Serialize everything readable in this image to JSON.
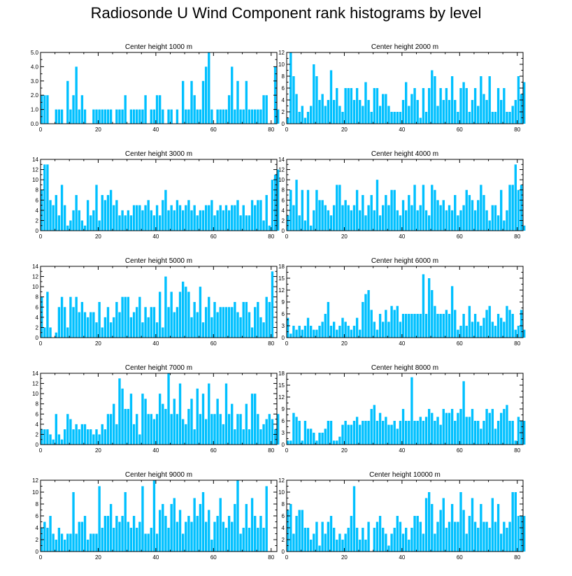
{
  "title": "Radiosonde U Wind Component rank histograms by level",
  "bar_color": "#00c0ff",
  "chart_data": [
    {
      "type": "bar",
      "title": "Center height 1000 m",
      "xlim": [
        0,
        82
      ],
      "ylim": [
        0,
        5
      ],
      "xticks": [
        "0",
        "20",
        "40",
        "60",
        "80"
      ],
      "yticks": [
        "0.0",
        "1.0",
        "2.0",
        "3.0",
        "4.0",
        "5.0"
      ],
      "values": [
        2,
        2,
        2,
        0,
        0,
        1,
        1,
        1,
        0,
        3,
        1,
        2,
        4,
        1,
        2,
        1,
        0,
        0,
        1,
        1,
        1,
        1,
        1,
        1,
        1,
        0,
        1,
        1,
        1,
        2,
        0,
        1,
        1,
        1,
        1,
        1,
        2,
        0,
        1,
        1,
        2,
        2,
        1,
        0,
        1,
        1,
        0,
        1,
        0,
        3,
        1,
        1,
        3,
        2,
        1,
        1,
        3,
        4,
        5,
        1,
        0,
        1,
        1,
        1,
        1,
        2,
        4,
        1,
        3,
        1,
        1,
        3,
        1,
        1,
        1,
        1,
        1,
        2,
        2,
        0,
        0,
        4,
        1
      ]
    },
    {
      "type": "bar",
      "title": "Center height 2000 m",
      "xlim": [
        0,
        82
      ],
      "ylim": [
        0,
        12
      ],
      "xticks": [
        "0",
        "20",
        "40",
        "60",
        "80"
      ],
      "yticks": [
        "0",
        "2",
        "4",
        "6",
        "8",
        "10",
        "12"
      ],
      "values": [
        1,
        12,
        8,
        5,
        2,
        3,
        1,
        2,
        3,
        10,
        8,
        4,
        5,
        3,
        4,
        9,
        4,
        6,
        3,
        2,
        6,
        6,
        6,
        4,
        6,
        4,
        3,
        7,
        4,
        2,
        6,
        6,
        3,
        5,
        5,
        3,
        2,
        2,
        2,
        2,
        4,
        7,
        3,
        5,
        6,
        4,
        1,
        6,
        2,
        6,
        9,
        8,
        3,
        6,
        4,
        6,
        4,
        8,
        4,
        2,
        6,
        7,
        6,
        2,
        4,
        6,
        3,
        8,
        5,
        4,
        8,
        2,
        2,
        6,
        4,
        6,
        2,
        2,
        3,
        4,
        8,
        5,
        7
      ]
    },
    {
      "type": "bar",
      "title": "Center height 3000 m",
      "xlim": [
        0,
        82
      ],
      "ylim": [
        0,
        14
      ],
      "xticks": [
        "0",
        "20",
        "40",
        "60",
        "80"
      ],
      "yticks": [
        "0",
        "2",
        "4",
        "6",
        "8",
        "10",
        "12",
        "14"
      ],
      "values": [
        8,
        13,
        13,
        6,
        5,
        7,
        3,
        9,
        5,
        1,
        2,
        4,
        7,
        4,
        2,
        1,
        6,
        3,
        4,
        9,
        2,
        7,
        6,
        7,
        8,
        5,
        6,
        3,
        4,
        3,
        4,
        3,
        5,
        5,
        5,
        4,
        5,
        6,
        4,
        3,
        5,
        3,
        6,
        8,
        4,
        5,
        4,
        6,
        5,
        4,
        5,
        6,
        4,
        5,
        3,
        4,
        4,
        5,
        5,
        6,
        3,
        4,
        5,
        4,
        5,
        4,
        5,
        5,
        6,
        3,
        5,
        3,
        3,
        6,
        5,
        6,
        6,
        2,
        7,
        1,
        10,
        11,
        12
      ]
    },
    {
      "type": "bar",
      "title": "Center height 4000 m",
      "xlim": [
        0,
        82
      ],
      "ylim": [
        0,
        14
      ],
      "xticks": [
        "0",
        "20",
        "40",
        "60",
        "80"
      ],
      "yticks": [
        "0",
        "2",
        "4",
        "6",
        "8",
        "10",
        "12",
        "14"
      ],
      "values": [
        3,
        8,
        5,
        10,
        3,
        8,
        2,
        8,
        1,
        4,
        8,
        6,
        6,
        5,
        4,
        3,
        5,
        9,
        9,
        5,
        6,
        5,
        4,
        5,
        8,
        4,
        7,
        3,
        5,
        7,
        4,
        10,
        3,
        5,
        7,
        5,
        8,
        8,
        4,
        3,
        6,
        4,
        7,
        5,
        9,
        4,
        5,
        9,
        4,
        3,
        9,
        8,
        6,
        5,
        6,
        4,
        5,
        4,
        7,
        3,
        4,
        5,
        8,
        7,
        6,
        4,
        6,
        9,
        7,
        4,
        2,
        5,
        5,
        3,
        8,
        2,
        4,
        9,
        9,
        13,
        8,
        9,
        1
      ]
    },
    {
      "type": "bar",
      "title": "Center height 5000 m",
      "xlim": [
        0,
        82
      ],
      "ylim": [
        0,
        14
      ],
      "xticks": [
        "0",
        "20",
        "40",
        "60",
        "80"
      ],
      "yticks": [
        "0",
        "2",
        "4",
        "6",
        "8",
        "10",
        "12",
        "14"
      ],
      "values": [
        8,
        2,
        9,
        2,
        0,
        1,
        6,
        8,
        6,
        2,
        8,
        6,
        8,
        5,
        7,
        5,
        4,
        5,
        5,
        3,
        7,
        2,
        4,
        6,
        3,
        4,
        7,
        5,
        8,
        8,
        8,
        4,
        5,
        6,
        8,
        3,
        6,
        4,
        6,
        6,
        3,
        9,
        2,
        12,
        6,
        9,
        5,
        6,
        9,
        11,
        10,
        9,
        4,
        7,
        5,
        10,
        3,
        6,
        8,
        4,
        7,
        5,
        6,
        6,
        6,
        6,
        6,
        7,
        5,
        4,
        7,
        7,
        5,
        2,
        6,
        7,
        4,
        3,
        8,
        7,
        13
      ]
    },
    {
      "type": "bar",
      "title": "Center height 6000 m",
      "xlim": [
        0,
        82
      ],
      "ylim": [
        0,
        18
      ],
      "xticks": [
        "0",
        "20",
        "40",
        "60",
        "80"
      ],
      "yticks": [
        "0",
        "3",
        "6",
        "9",
        "12",
        "15",
        "18"
      ],
      "values": [
        5,
        1,
        3,
        2,
        3,
        2,
        3,
        5,
        3,
        2,
        2,
        3,
        4,
        6,
        9,
        3,
        4,
        2,
        3,
        5,
        4,
        3,
        2,
        3,
        5,
        2,
        9,
        11,
        12,
        7,
        4,
        2,
        6,
        4,
        7,
        4,
        8,
        7,
        8,
        4,
        6,
        6,
        6,
        6,
        6,
        6,
        6,
        16,
        6,
        15,
        12,
        8,
        6,
        6,
        6,
        7,
        6,
        13,
        7,
        2,
        3,
        6,
        3,
        8,
        4,
        6,
        4,
        3,
        5,
        7,
        8,
        4,
        3,
        6,
        5,
        4,
        8,
        7,
        6,
        2,
        3,
        7,
        2
      ]
    },
    {
      "type": "bar",
      "title": "Center height 7000 m",
      "xlim": [
        0,
        82
      ],
      "ylim": [
        0,
        14
      ],
      "xticks": [
        "0",
        "20",
        "40",
        "60",
        "80"
      ],
      "yticks": [
        "0",
        "2",
        "4",
        "6",
        "8",
        "10",
        "12",
        "14"
      ],
      "values": [
        3,
        3,
        3,
        2,
        1,
        6,
        2,
        1,
        3,
        6,
        5,
        3,
        4,
        3,
        4,
        4,
        3,
        3,
        2,
        3,
        2,
        4,
        3,
        6,
        6,
        8,
        4,
        13,
        11,
        7,
        7,
        10,
        4,
        6,
        2,
        10,
        9,
        6,
        6,
        5,
        6,
        10,
        8,
        7,
        14,
        6,
        9,
        6,
        12,
        5,
        4,
        7,
        9,
        3,
        11,
        6,
        10,
        5,
        12,
        6,
        6,
        9,
        6,
        4,
        12,
        6,
        8,
        3,
        6,
        6,
        3,
        8,
        3,
        10,
        10,
        6,
        3,
        4,
        5,
        6,
        5,
        3,
        6
      ]
    },
    {
      "type": "bar",
      "title": "Center height 8000 m",
      "xlim": [
        0,
        82
      ],
      "ylim": [
        0,
        18
      ],
      "xticks": [
        "0",
        "20",
        "40",
        "60",
        "80"
      ],
      "yticks": [
        "0",
        "3",
        "6",
        "9",
        "12",
        "15",
        "18"
      ],
      "values": [
        1,
        1,
        8,
        7,
        6,
        1,
        6,
        4,
        4,
        3,
        1,
        3,
        3,
        4,
        6,
        6,
        1,
        1,
        2,
        5,
        6,
        5,
        5,
        6,
        7,
        5,
        6,
        6,
        6,
        9,
        10,
        6,
        8,
        6,
        7,
        5,
        5,
        6,
        4,
        6,
        9,
        6,
        6,
        17,
        6,
        6,
        7,
        6,
        7,
        9,
        8,
        6,
        7,
        5,
        9,
        8,
        8,
        9,
        6,
        8,
        9,
        16,
        7,
        7,
        9,
        6,
        6,
        4,
        6,
        9,
        8,
        9,
        4,
        6,
        8,
        9,
        10,
        6,
        6,
        1,
        7,
        6,
        6
      ]
    },
    {
      "type": "bar",
      "title": "Center height 9000 m",
      "xlim": [
        0,
        82
      ],
      "ylim": [
        0,
        12
      ],
      "xticks": [
        "0",
        "20",
        "40",
        "60",
        "80"
      ],
      "yticks": [
        "0",
        "2",
        "4",
        "6",
        "8",
        "10",
        "12"
      ],
      "values": [
        4,
        5,
        4,
        6,
        3,
        2,
        4,
        3,
        2,
        3,
        3,
        10,
        3,
        5,
        5,
        6,
        2,
        3,
        3,
        3,
        11,
        4,
        6,
        6,
        8,
        4,
        6,
        5,
        6,
        10,
        5,
        4,
        6,
        4,
        5,
        11,
        3,
        3,
        4,
        12,
        3,
        7,
        8,
        6,
        4,
        8,
        9,
        5,
        7,
        3,
        5,
        6,
        5,
        9,
        6,
        8,
        10,
        5,
        7,
        2,
        5,
        6,
        9,
        5,
        4,
        6,
        5,
        8,
        12,
        3,
        4,
        8,
        4,
        9,
        6,
        4,
        6,
        4,
        11
      ]
    },
    {
      "type": "bar",
      "title": "Center height 10000 m",
      "xlim": [
        0,
        82
      ],
      "ylim": [
        0,
        12
      ],
      "xticks": [
        "0",
        "20",
        "40",
        "60",
        "80"
      ],
      "yticks": [
        "0",
        "2",
        "4",
        "6",
        "8",
        "10",
        "12"
      ],
      "values": [
        7,
        8,
        3,
        6,
        7,
        7,
        4,
        4,
        2,
        3,
        5,
        1,
        5,
        3,
        5,
        6,
        4,
        2,
        3,
        2,
        3,
        4,
        6,
        11,
        4,
        2,
        4,
        2,
        5,
        0,
        4,
        5,
        6,
        4,
        3,
        1,
        3,
        4,
        6,
        5,
        3,
        4,
        2,
        4,
        6,
        6,
        5,
        3,
        9,
        10,
        8,
        3,
        5,
        7,
        9,
        4,
        5,
        8,
        5,
        5,
        10,
        7,
        3,
        6,
        9,
        5,
        4,
        8,
        5,
        5,
        4,
        9,
        5,
        8,
        3,
        5,
        4,
        5,
        10,
        10,
        6,
        6,
        6
      ]
    }
  ]
}
